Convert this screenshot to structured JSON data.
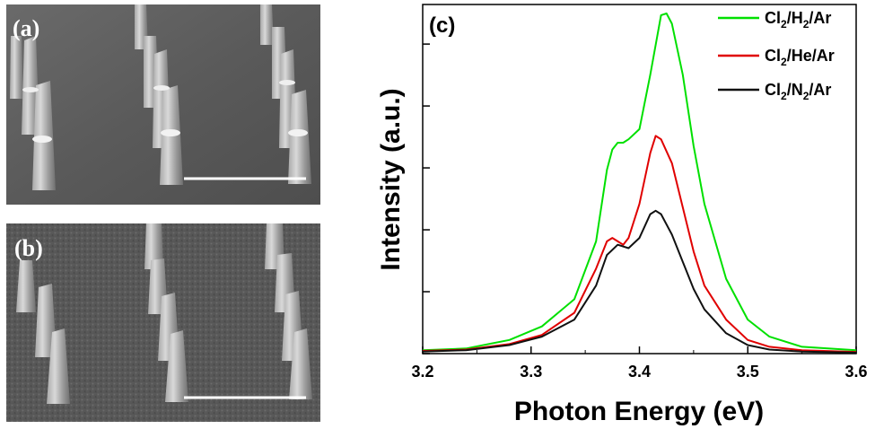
{
  "panels": {
    "a": {
      "label": "(a)"
    },
    "b": {
      "label": "(b)"
    }
  },
  "chart_data": {
    "type": "line",
    "panel_label": "(c)",
    "xlabel": "Photon Energy (eV)",
    "ylabel": "Intensity (a.u.)",
    "xlim": [
      3.2,
      3.6
    ],
    "ylim": [
      0,
      1.0
    ],
    "xticks": [
      "3.2",
      "3.3",
      "3.4",
      "3.5",
      "3.6"
    ],
    "ytick_values": [
      0,
      0.182,
      0.364,
      0.546,
      0.728,
      0.91
    ],
    "legend_position": "top-right",
    "grid": false,
    "series": [
      {
        "name": "Cl2/H2/Ar",
        "label_main": "Cl",
        "label_parts": [
          [
            "Cl",
            ""
          ],
          [
            "2",
            "sub"
          ],
          [
            "/H",
            ""
          ],
          [
            "2",
            "sub"
          ],
          [
            "/Ar",
            ""
          ]
        ],
        "color": "#00e000",
        "points": [
          [
            3.2,
            0.01
          ],
          [
            3.24,
            0.015
          ],
          [
            3.28,
            0.04
          ],
          [
            3.31,
            0.08
          ],
          [
            3.34,
            0.16
          ],
          [
            3.36,
            0.33
          ],
          [
            3.37,
            0.54
          ],
          [
            3.375,
            0.6
          ],
          [
            3.38,
            0.62
          ],
          [
            3.385,
            0.62
          ],
          [
            3.39,
            0.63
          ],
          [
            3.4,
            0.66
          ],
          [
            3.41,
            0.82
          ],
          [
            3.42,
            0.995
          ],
          [
            3.425,
            1.0
          ],
          [
            3.43,
            0.97
          ],
          [
            3.44,
            0.82
          ],
          [
            3.45,
            0.61
          ],
          [
            3.46,
            0.44
          ],
          [
            3.48,
            0.22
          ],
          [
            3.5,
            0.1
          ],
          [
            3.52,
            0.05
          ],
          [
            3.55,
            0.02
          ],
          [
            3.6,
            0.01
          ]
        ]
      },
      {
        "name": "Cl2/He/Ar",
        "label_parts": [
          [
            "Cl",
            ""
          ],
          [
            "2",
            "sub"
          ],
          [
            "/He/Ar",
            ""
          ]
        ],
        "color": "#e00000",
        "points": [
          [
            3.2,
            0.008
          ],
          [
            3.24,
            0.012
          ],
          [
            3.28,
            0.028
          ],
          [
            3.31,
            0.055
          ],
          [
            3.34,
            0.12
          ],
          [
            3.36,
            0.25
          ],
          [
            3.37,
            0.33
          ],
          [
            3.375,
            0.34
          ],
          [
            3.38,
            0.33
          ],
          [
            3.385,
            0.32
          ],
          [
            3.39,
            0.34
          ],
          [
            3.4,
            0.44
          ],
          [
            3.41,
            0.59
          ],
          [
            3.415,
            0.64
          ],
          [
            3.42,
            0.63
          ],
          [
            3.43,
            0.56
          ],
          [
            3.44,
            0.43
          ],
          [
            3.45,
            0.3
          ],
          [
            3.46,
            0.2
          ],
          [
            3.48,
            0.1
          ],
          [
            3.5,
            0.04
          ],
          [
            3.52,
            0.02
          ],
          [
            3.55,
            0.01
          ],
          [
            3.6,
            0.005
          ]
        ]
      },
      {
        "name": "Cl2/N2/Ar",
        "label_parts": [
          [
            "Cl",
            ""
          ],
          [
            "2",
            "sub"
          ],
          [
            "/N",
            ""
          ],
          [
            "2",
            "sub"
          ],
          [
            "/Ar",
            ""
          ]
        ],
        "color": "#111111",
        "points": [
          [
            3.2,
            0.006
          ],
          [
            3.24,
            0.01
          ],
          [
            3.28,
            0.025
          ],
          [
            3.31,
            0.05
          ],
          [
            3.34,
            0.1
          ],
          [
            3.36,
            0.2
          ],
          [
            3.37,
            0.29
          ],
          [
            3.38,
            0.32
          ],
          [
            3.39,
            0.31
          ],
          [
            3.4,
            0.34
          ],
          [
            3.41,
            0.41
          ],
          [
            3.415,
            0.42
          ],
          [
            3.42,
            0.41
          ],
          [
            3.43,
            0.35
          ],
          [
            3.44,
            0.27
          ],
          [
            3.45,
            0.19
          ],
          [
            3.46,
            0.13
          ],
          [
            3.48,
            0.06
          ],
          [
            3.5,
            0.025
          ],
          [
            3.52,
            0.012
          ],
          [
            3.55,
            0.006
          ],
          [
            3.6,
            0.003
          ]
        ]
      }
    ]
  }
}
